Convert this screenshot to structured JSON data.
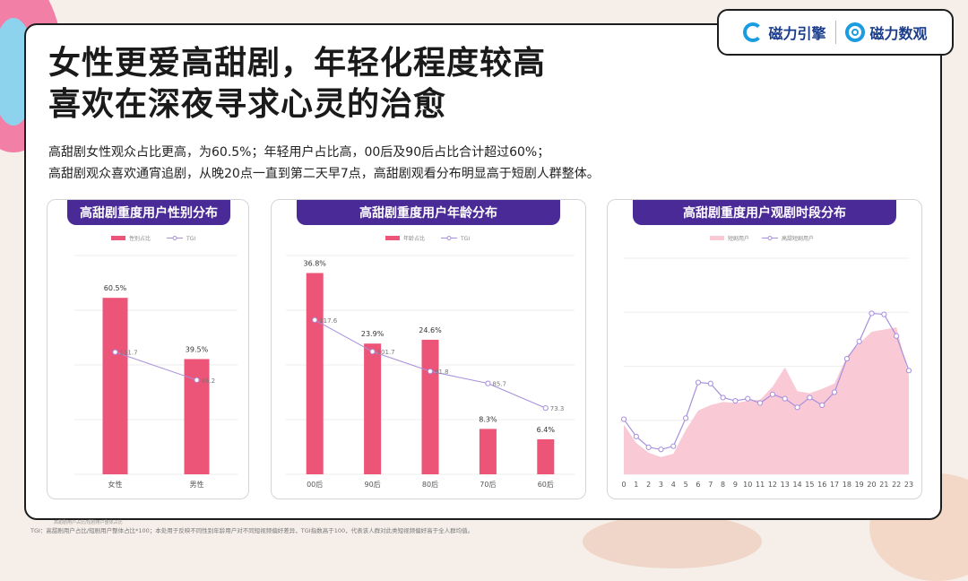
{
  "brand": {
    "logo1": "磁力引擎",
    "logo2": "磁力数观"
  },
  "title_line1": "女性更爱高甜剧，年轻化程度较高",
  "title_line2": "喜欢在深夜寻求心灵的治愈",
  "desc_line1": "高甜剧女性观众占比更高，为60.5%；年轻用户占比高，00后及90后占比合计超过60%；",
  "desc_line2": "高甜剧观众喜欢通宵追剧，从晚20点一直到第二天早7点，高甜剧观看分布明显高于短剧人群整体。",
  "colors": {
    "bar": "#ec5577",
    "line": "#a78fdc",
    "area": "#f9c9d6",
    "header": "#4a2a96"
  },
  "footnote": "TGI：高甜剧用户占比/短剧用户整体占比*100；本处用于反映不同性别年龄用户对不同短视频偏好差异，TGI指数高于100，代表该人群对此类短视频偏好高于全人群均值。",
  "footnote_small": "高甜剧用户占比/短剧用户整体占比",
  "chart_data": [
    {
      "type": "bar",
      "title": "高甜剧重度用户性别分布",
      "legend": [
        "性别占比",
        "TGI"
      ],
      "categories": [
        "女性",
        "男性"
      ],
      "series": [
        {
          "name": "性别占比",
          "kind": "bar",
          "values": [
            60.5,
            39.5
          ],
          "labels": [
            "60.5%",
            "39.5%"
          ]
        },
        {
          "name": "TGI",
          "kind": "line",
          "values": [
            111.7,
            86.2
          ],
          "labels": [
            "111.7",
            "86.2"
          ]
        }
      ],
      "ylim_bar": [
        0,
        75
      ],
      "ylim_line": [
        0,
        200
      ]
    },
    {
      "type": "bar",
      "title": "高甜剧重度用户年龄分布",
      "legend": [
        "年龄占比",
        "TGI"
      ],
      "categories": [
        "00后",
        "90后",
        "80后",
        "70后",
        "60后"
      ],
      "series": [
        {
          "name": "年龄占比",
          "kind": "bar",
          "values": [
            36.8,
            23.9,
            24.6,
            8.3,
            6.4
          ],
          "labels": [
            "36.8%",
            "23.9%",
            "24.6%",
            "8.3%",
            "6.4%"
          ]
        },
        {
          "name": "TGI",
          "kind": "line",
          "values": [
            117.6,
            101.7,
            91.8,
            85.7,
            73.3
          ],
          "labels": [
            "117.6",
            "101.7",
            "91.8",
            "85.7",
            "73.3"
          ]
        }
      ],
      "ylim_bar": [
        0,
        40
      ],
      "ylim_line": [
        40,
        150
      ]
    },
    {
      "type": "area",
      "title": "高甜剧重度用户观剧时段分布",
      "legend": [
        "短剧用户",
        "高甜短剧用户"
      ],
      "categories": [
        "0",
        "1",
        "2",
        "3",
        "4",
        "5",
        "6",
        "7",
        "8",
        "9",
        "10",
        "11",
        "12",
        "13",
        "14",
        "15",
        "16",
        "17",
        "18",
        "19",
        "20",
        "21",
        "22",
        "23"
      ],
      "series": [
        {
          "name": "短剧用户",
          "kind": "area",
          "values": [
            4.6,
            2.9,
            2.0,
            1.6,
            1.9,
            4.1,
            5.9,
            6.4,
            6.7,
            6.6,
            6.8,
            6.9,
            8.1,
            9.9,
            7.7,
            7.5,
            7.9,
            8.4,
            10.9,
            12.1,
            13.2,
            13.4,
            13.6,
            9.1
          ]
        },
        {
          "name": "高甜短剧用户",
          "kind": "line",
          "values": [
            5.1,
            3.5,
            2.5,
            2.3,
            2.6,
            5.2,
            8.5,
            8.4,
            7.1,
            6.8,
            7.0,
            6.6,
            7.4,
            7.0,
            6.2,
            7.1,
            6.4,
            7.6,
            10.7,
            12.3,
            14.9,
            14.8,
            12.8,
            9.6
          ]
        }
      ],
      "ylim": [
        0,
        20
      ]
    }
  ]
}
